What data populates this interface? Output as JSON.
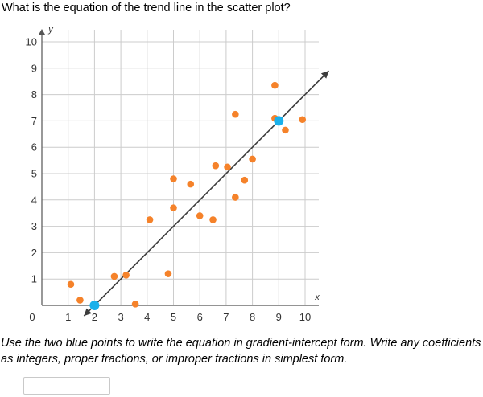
{
  "question": "What is the equation of the trend line in the scatter plot?",
  "instructions": "Use the two blue points to write the equation in gradient-intercept form. Write any coefficients as integers, proper fractions, or improper fractions in simplest form.",
  "answer": {
    "value": "",
    "placeholder": ""
  },
  "colors": {
    "scatter": "#f5822a",
    "highlight": "#1ab0ea",
    "line": "#3c3c3c",
    "grid": "#cccccc",
    "axis": "#555555"
  },
  "chart_data": {
    "type": "scatter",
    "xlabel": "x",
    "ylabel": "y",
    "origin_label": "0",
    "xlim": [
      0,
      10.5
    ],
    "ylim": [
      0,
      10.5
    ],
    "x_ticks": [
      1,
      2,
      3,
      4,
      5,
      6,
      7,
      8,
      9,
      10
    ],
    "y_ticks": [
      1,
      2,
      3,
      4,
      5,
      6,
      7,
      8,
      9,
      10
    ],
    "grid": true,
    "series": [
      {
        "points": [
          [
            1.1,
            0.8
          ],
          [
            1.45,
            0.2
          ],
          [
            2.75,
            1.1
          ],
          [
            3.2,
            1.15
          ],
          [
            3.55,
            0.05
          ],
          [
            4.1,
            3.25
          ],
          [
            4.8,
            1.2
          ],
          [
            5.0,
            3.7
          ],
          [
            5.0,
            4.8
          ],
          [
            5.65,
            4.6
          ],
          [
            6.0,
            3.4
          ],
          [
            6.5,
            3.25
          ],
          [
            6.6,
            5.3
          ],
          [
            7.05,
            5.25
          ],
          [
            7.35,
            4.1
          ],
          [
            7.35,
            7.25
          ],
          [
            7.7,
            4.75
          ],
          [
            8.0,
            5.55
          ],
          [
            8.85,
            7.1
          ],
          [
            8.85,
            8.35
          ],
          [
            9.25,
            6.65
          ],
          [
            9.9,
            7.05
          ]
        ]
      }
    ],
    "highlighted_points": [
      [
        2,
        0
      ],
      [
        9,
        7
      ]
    ],
    "trend_line": {
      "from": [
        1.6,
        -0.4
      ],
      "to": [
        10.9,
        8.9
      ]
    }
  }
}
